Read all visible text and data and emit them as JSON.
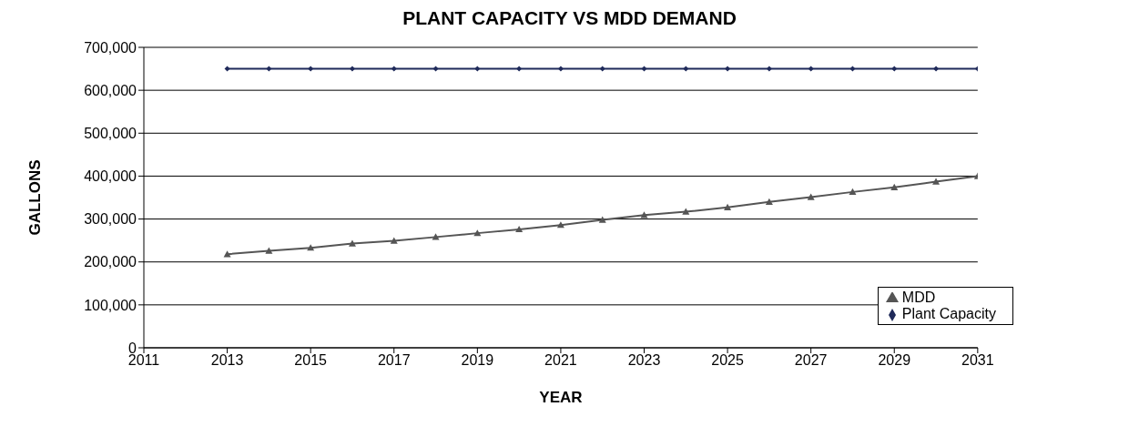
{
  "chart_data": {
    "type": "line",
    "title": "PLANT CAPACITY VS MDD DEMAND",
    "xlabel": "YEAR",
    "ylabel": "GALLONS",
    "x": [
      2013,
      2014,
      2015,
      2016,
      2017,
      2018,
      2019,
      2020,
      2021,
      2022,
      2023,
      2024,
      2025,
      2026,
      2027,
      2028,
      2029,
      2030,
      2031
    ],
    "series": [
      {
        "name": "MDD",
        "color": "#555555",
        "marker": "triangle",
        "values": [
          218000,
          226000,
          233000,
          243000,
          249000,
          258000,
          267000,
          276000,
          286000,
          298000,
          309000,
          317000,
          327000,
          340000,
          351000,
          363000,
          374000,
          387000,
          400000
        ]
      },
      {
        "name": "Plant Capacity",
        "color": "#1f2a5a",
        "marker": "diamond",
        "values": [
          650000,
          650000,
          650000,
          650000,
          650000,
          650000,
          650000,
          650000,
          650000,
          650000,
          650000,
          650000,
          650000,
          650000,
          650000,
          650000,
          650000,
          650000,
          650000
        ]
      }
    ],
    "xlim": [
      2011,
      2031
    ],
    "xticks": [
      2011,
      2013,
      2015,
      2017,
      2019,
      2021,
      2023,
      2025,
      2027,
      2029,
      2031
    ],
    "ylim": [
      0,
      700000
    ],
    "yticks": [
      {
        "value": 0,
        "label": "0"
      },
      {
        "value": 100000,
        "label": "100,000"
      },
      {
        "value": 200000,
        "label": "200,000"
      },
      {
        "value": 300000,
        "label": "300,000"
      },
      {
        "value": 400000,
        "label": "400,000"
      },
      {
        "value": 500000,
        "label": "500,000"
      },
      {
        "value": 600000,
        "label": "600,000"
      },
      {
        "value": 700000,
        "label": "700,000"
      }
    ],
    "grid": "y",
    "legend": "bottom right",
    "line_style": "solid"
  }
}
